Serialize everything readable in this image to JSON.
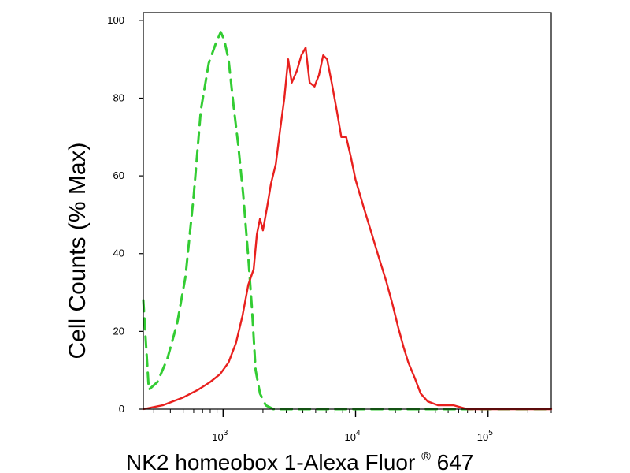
{
  "chart_data": {
    "type": "line",
    "title": "",
    "xlabel": "NK2 homeobox 1-Alexa Fluor",
    "xlabel_superscript": "®",
    "xlabel_suffix": " 647",
    "ylabel": "Cell Counts (% Max)",
    "x_scale": "log",
    "xlim": [
      250,
      300000
    ],
    "ylim": [
      0,
      102
    ],
    "y_ticks": [
      0,
      20,
      40,
      60,
      80,
      100
    ],
    "x_major_ticks": [
      1000,
      10000,
      100000
    ],
    "x_tick_labels": [
      {
        "base": "10",
        "exp": "3"
      },
      {
        "base": "10",
        "exp": "4"
      },
      {
        "base": "10",
        "exp": "5"
      }
    ],
    "grid": false,
    "legend": "none",
    "series": [
      {
        "color": "#33cc33",
        "style": "dashed",
        "points": [
          [
            250,
            28
          ],
          [
            275,
            5
          ],
          [
            320,
            7
          ],
          [
            380,
            13
          ],
          [
            450,
            22
          ],
          [
            520,
            34
          ],
          [
            600,
            55
          ],
          [
            680,
            77
          ],
          [
            780,
            89
          ],
          [
            880,
            94
          ],
          [
            960,
            97
          ],
          [
            1020,
            95
          ],
          [
            1100,
            90
          ],
          [
            1200,
            78
          ],
          [
            1300,
            68
          ],
          [
            1420,
            55
          ],
          [
            1550,
            39
          ],
          [
            1650,
            26
          ],
          [
            1760,
            10
          ],
          [
            1900,
            4
          ],
          [
            2100,
            1
          ],
          [
            2400,
            0
          ],
          [
            300000,
            0
          ]
        ]
      },
      {
        "color": "#e8201e",
        "style": "solid",
        "points": [
          [
            250,
            0
          ],
          [
            350,
            1
          ],
          [
            500,
            3
          ],
          [
            650,
            5
          ],
          [
            800,
            7
          ],
          [
            950,
            9
          ],
          [
            1100,
            12
          ],
          [
            1250,
            17
          ],
          [
            1400,
            24
          ],
          [
            1550,
            32
          ],
          [
            1700,
            36
          ],
          [
            1800,
            45
          ],
          [
            1900,
            49
          ],
          [
            2000,
            46
          ],
          [
            2150,
            52
          ],
          [
            2300,
            58
          ],
          [
            2500,
            63
          ],
          [
            2700,
            72
          ],
          [
            2900,
            80
          ],
          [
            3100,
            90
          ],
          [
            3300,
            84
          ],
          [
            3600,
            87
          ],
          [
            3900,
            91
          ],
          [
            4200,
            93
          ],
          [
            4500,
            84
          ],
          [
            4900,
            83
          ],
          [
            5300,
            86
          ],
          [
            5700,
            91
          ],
          [
            6100,
            90
          ],
          [
            6600,
            84
          ],
          [
            7200,
            77
          ],
          [
            7800,
            70
          ],
          [
            8500,
            70
          ],
          [
            9200,
            65
          ],
          [
            10000,
            59
          ],
          [
            11500,
            52
          ],
          [
            13000,
            46
          ],
          [
            15000,
            39
          ],
          [
            17000,
            33
          ],
          [
            19000,
            27
          ],
          [
            21000,
            21
          ],
          [
            23000,
            16
          ],
          [
            25000,
            12
          ],
          [
            28000,
            8
          ],
          [
            31000,
            4
          ],
          [
            35000,
            2
          ],
          [
            42000,
            1
          ],
          [
            55000,
            1
          ],
          [
            70000,
            0
          ],
          [
            300000,
            0
          ]
        ]
      }
    ]
  }
}
